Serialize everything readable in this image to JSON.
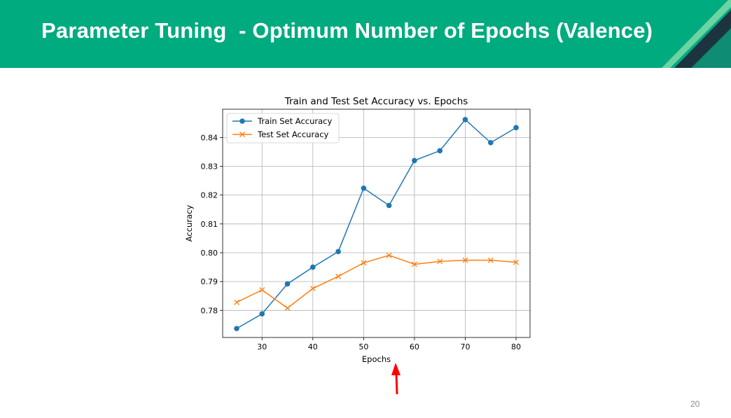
{
  "slide": {
    "title": "Parameter Tuning  - Optimum Number of Epochs (Valence)",
    "page_number": "20",
    "header_color": "#00ab7f"
  },
  "chart_data": {
    "type": "line",
    "title": "Train and Test Set Accuracy vs. Epochs",
    "xlabel": "Epochs",
    "ylabel": "Accuracy",
    "x": [
      25,
      30,
      35,
      40,
      45,
      50,
      55,
      60,
      65,
      70,
      75,
      80
    ],
    "xticks": [
      30,
      40,
      50,
      60,
      70,
      80
    ],
    "yticks": [
      0.78,
      0.79,
      0.8,
      0.81,
      0.82,
      0.83,
      0.84
    ],
    "ytick_labels": [
      "0.78",
      "0.79",
      "0.80",
      "0.81",
      "0.82",
      "0.83",
      "0.84"
    ],
    "xlim": [
      22.25,
      82.75
    ],
    "ylim": [
      0.7706,
      0.8498
    ],
    "grid": true,
    "legend_position": "upper left",
    "series": [
      {
        "name": "Train Set Accuracy",
        "marker": "circle",
        "color": "#1f77b4",
        "values": [
          0.7737,
          0.7788,
          0.7892,
          0.795,
          0.8004,
          0.8224,
          0.8164,
          0.832,
          0.8354,
          0.8462,
          0.8382,
          0.8434
        ]
      },
      {
        "name": "Test Set Accuracy",
        "marker": "x",
        "color": "#ff7f0e",
        "values": [
          0.7828,
          0.7871,
          0.7808,
          0.7876,
          0.7918,
          0.7965,
          0.7991,
          0.796,
          0.797,
          0.7974,
          0.7974,
          0.7967
        ]
      }
    ],
    "annotation": {
      "type": "arrow",
      "color": "#ff0000",
      "points_to_x": 55.6
    }
  }
}
